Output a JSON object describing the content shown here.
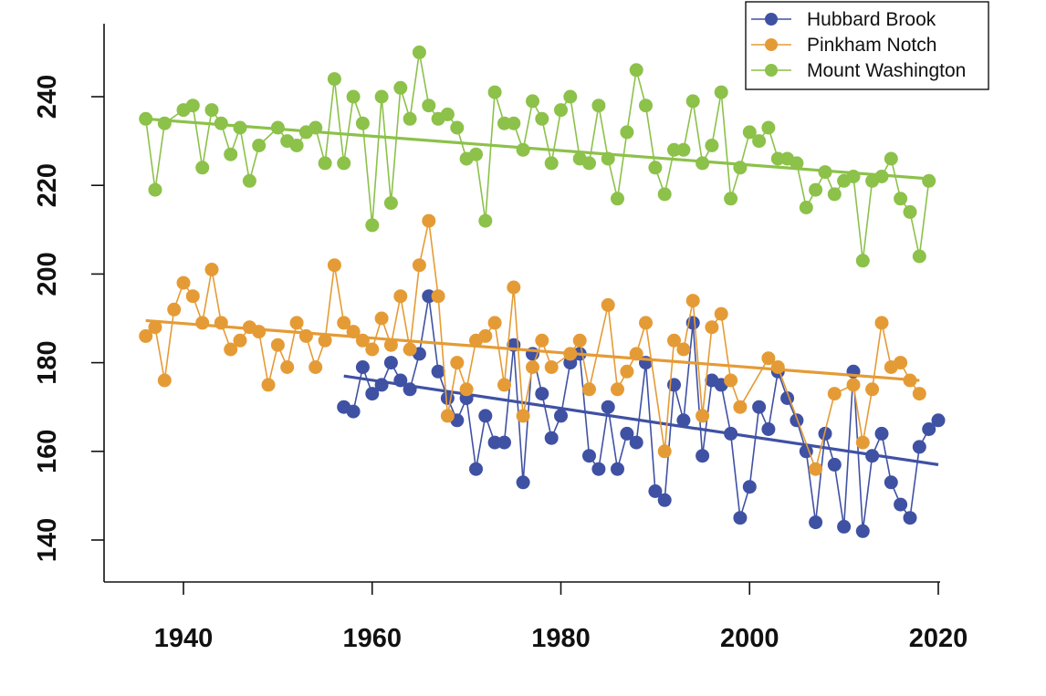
{
  "chart_data": {
    "type": "line",
    "title": "",
    "xlabel": "",
    "ylabel": "",
    "xlim": [
      1932,
      2022
    ],
    "ylim": [
      131,
      251
    ],
    "x_ticks": [
      1940,
      1960,
      1980,
      2000,
      2020
    ],
    "y_ticks": [
      140,
      160,
      180,
      200,
      220,
      240
    ],
    "x_tick_labels": [
      "1940",
      "1960",
      "1980",
      "2000",
      "2020"
    ],
    "y_tick_labels": [
      "140",
      "160",
      "180",
      "200",
      "220",
      "240"
    ],
    "grid": false,
    "legend_position": "top-right",
    "series": [
      {
        "name": "Hubbard Brook",
        "color": "#3f51a3",
        "x": [
          1957,
          1958,
          1959,
          1960,
          1961,
          1962,
          1963,
          1964,
          1965,
          1966,
          1967,
          1968,
          1969,
          1970,
          1971,
          1972,
          1973,
          1974,
          1975,
          1976,
          1977,
          1978,
          1979,
          1980,
          1981,
          1982,
          1983,
          1984,
          1985,
          1986,
          1987,
          1988,
          1989,
          1990,
          1991,
          1992,
          1993,
          1994,
          1995,
          1996,
          1997,
          1998,
          1999,
          2000,
          2001,
          2002,
          2003,
          2004,
          2005,
          2006,
          2007,
          2008,
          2009,
          2010,
          2011,
          2012,
          2013,
          2014,
          2015,
          2016,
          2017,
          2018,
          2019,
          2020
        ],
        "y": [
          170,
          169,
          179,
          173,
          175,
          180,
          176,
          174,
          182,
          195,
          178,
          172,
          167,
          172,
          156,
          168,
          162,
          162,
          184,
          153,
          182,
          173,
          163,
          168,
          180,
          182,
          159,
          156,
          170,
          156,
          164,
          162,
          180,
          151,
          149,
          175,
          167,
          189,
          159,
          176,
          175,
          164,
          145,
          152,
          170,
          165,
          178,
          172,
          167,
          160,
          144,
          164,
          157,
          143,
          178,
          142,
          159,
          164,
          153,
          148,
          145,
          161,
          165,
          167
        ],
        "trend": [
          [
            1957,
            177
          ],
          [
            2020,
            157
          ]
        ]
      },
      {
        "name": "Pinkham Notch",
        "color": "#e59b35",
        "x": [
          1936,
          1937,
          1938,
          1939,
          1940,
          1941,
          1942,
          1943,
          1944,
          1945,
          1946,
          1947,
          1948,
          1949,
          1950,
          1951,
          1952,
          1953,
          1954,
          1955,
          1956,
          1957,
          1958,
          1959,
          1960,
          1961,
          1962,
          1963,
          1964,
          1965,
          1966,
          1967,
          1968,
          1969,
          1970,
          1971,
          1972,
          1973,
          1974,
          1975,
          1976,
          1977,
          1978,
          1979,
          1981,
          1982,
          1983,
          1985,
          1986,
          1987,
          1988,
          1989,
          1991,
          1992,
          1993,
          1994,
          1995,
          1996,
          1997,
          1998,
          1999,
          2002,
          2003,
          2007,
          2009,
          2011,
          2012,
          2013,
          2014,
          2015,
          2016,
          2017,
          2018
        ],
        "y": [
          186,
          188,
          176,
          192,
          198,
          195,
          189,
          201,
          189,
          183,
          185,
          188,
          187,
          175,
          184,
          179,
          189,
          186,
          179,
          185,
          202,
          189,
          187,
          185,
          183,
          190,
          184,
          195,
          183,
          202,
          212,
          195,
          168,
          180,
          174,
          185,
          186,
          189,
          175,
          197,
          168,
          179,
          185,
          179,
          182,
          185,
          174,
          193,
          174,
          178,
          182,
          189,
          160,
          185,
          183,
          194,
          168,
          188,
          191,
          176,
          170,
          181,
          179,
          156,
          173,
          175,
          162,
          174,
          189,
          179,
          180,
          176,
          173
        ],
        "trend": [
          [
            1936,
            189.5
          ],
          [
            2018,
            176
          ]
        ]
      },
      {
        "name": "Mount Washington",
        "color": "#8cc14a",
        "x": [
          1936,
          1937,
          1938,
          1940,
          1941,
          1942,
          1943,
          1944,
          1945,
          1946,
          1947,
          1948,
          1950,
          1951,
          1952,
          1953,
          1954,
          1955,
          1956,
          1957,
          1958,
          1959,
          1960,
          1961,
          1962,
          1963,
          1964,
          1965,
          1966,
          1967,
          1968,
          1969,
          1970,
          1971,
          1972,
          1973,
          1974,
          1975,
          1976,
          1977,
          1978,
          1979,
          1980,
          1981,
          1982,
          1983,
          1984,
          1985,
          1986,
          1987,
          1988,
          1989,
          1990,
          1991,
          1992,
          1993,
          1994,
          1995,
          1996,
          1997,
          1998,
          1999,
          2000,
          2001,
          2002,
          2003,
          2004,
          2005,
          2006,
          2007,
          2008,
          2009,
          2010,
          2011,
          2012,
          2013,
          2014,
          2015,
          2016,
          2017,
          2018,
          2019
        ],
        "y": [
          235,
          219,
          234,
          237,
          238,
          224,
          237,
          234,
          227,
          233,
          221,
          229,
          233,
          230,
          229,
          232,
          233,
          225,
          244,
          225,
          240,
          234,
          211,
          240,
          216,
          242,
          235,
          250,
          238,
          235,
          236,
          233,
          226,
          227,
          212,
          241,
          234,
          234,
          228,
          239,
          235,
          225,
          237,
          240,
          226,
          225,
          238,
          226,
          217,
          232,
          246,
          238,
          224,
          218,
          228,
          228,
          239,
          225,
          229,
          241,
          217,
          224,
          232,
          230,
          233,
          226,
          226,
          225,
          215,
          219,
          223,
          218,
          221,
          222,
          203,
          221,
          222,
          226,
          217,
          214,
          204,
          221
        ],
        "trend": [
          [
            1936,
            235
          ],
          [
            2019,
            221.5
          ]
        ]
      }
    ]
  }
}
